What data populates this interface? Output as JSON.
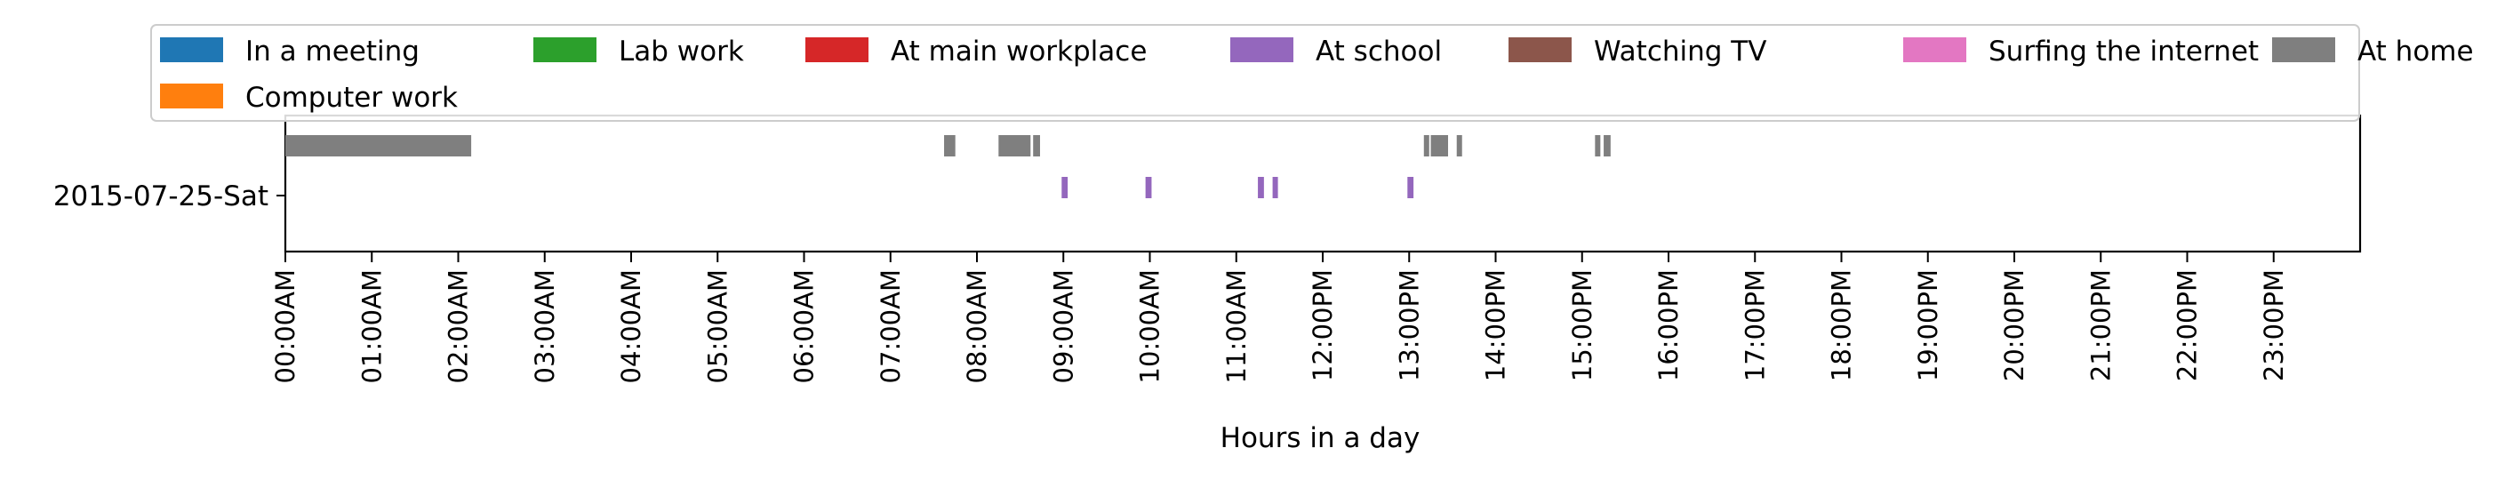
{
  "chart_data": {
    "type": "timeline",
    "title": "",
    "xlabel": "Hours in a day",
    "ylabel": "",
    "xlim": [
      0,
      24
    ],
    "x_ticks": [
      {
        "value": 0,
        "label": "00:00AM"
      },
      {
        "value": 1,
        "label": "01:00AM"
      },
      {
        "value": 2,
        "label": "02:00AM"
      },
      {
        "value": 3,
        "label": "03:00AM"
      },
      {
        "value": 4,
        "label": "04:00AM"
      },
      {
        "value": 5,
        "label": "05:00AM"
      },
      {
        "value": 6,
        "label": "06:00AM"
      },
      {
        "value": 7,
        "label": "07:00AM"
      },
      {
        "value": 8,
        "label": "08:00AM"
      },
      {
        "value": 9,
        "label": "09:00AM"
      },
      {
        "value": 10,
        "label": "10:00AM"
      },
      {
        "value": 11,
        "label": "11:00AM"
      },
      {
        "value": 12,
        "label": "12:00PM"
      },
      {
        "value": 13,
        "label": "13:00PM"
      },
      {
        "value": 14,
        "label": "14:00PM"
      },
      {
        "value": 15,
        "label": "15:00PM"
      },
      {
        "value": 16,
        "label": "16:00PM"
      },
      {
        "value": 17,
        "label": "17:00PM"
      },
      {
        "value": 18,
        "label": "18:00PM"
      },
      {
        "value": 19,
        "label": "19:00PM"
      },
      {
        "value": 20,
        "label": "20:00PM"
      },
      {
        "value": 21,
        "label": "21:00PM"
      },
      {
        "value": 22,
        "label": "22:00PM"
      },
      {
        "value": 23,
        "label": "23:00PM"
      }
    ],
    "rows": [
      "2015-07-25-Sat"
    ],
    "legend_position": "top",
    "legend": [
      {
        "name": "In a meeting",
        "color": "#1f77b4"
      },
      {
        "name": "Lab work",
        "color": "#2ca02c"
      },
      {
        "name": "At main workplace",
        "color": "#d62728"
      },
      {
        "name": "At school",
        "color": "#9467bd"
      },
      {
        "name": "Watching TV",
        "color": "#8c564b"
      },
      {
        "name": "Surfing the internet",
        "color": "#e377c2"
      },
      {
        "name": "At home",
        "color": "#7f7f7f"
      },
      {
        "name": "Computer work",
        "color": "#ff7f0e"
      }
    ],
    "series": [
      {
        "name": "At home",
        "color": "#7f7f7f",
        "row": "2015-07-25-Sat",
        "lane": "upper",
        "intervals": [
          [
            0.0,
            2.15
          ],
          [
            7.62,
            7.75
          ],
          [
            8.25,
            8.62
          ],
          [
            8.65,
            8.73
          ],
          [
            13.17,
            13.23
          ],
          [
            13.25,
            13.45
          ],
          [
            13.55,
            13.6
          ],
          [
            15.15,
            15.2
          ],
          [
            15.25,
            15.33
          ]
        ]
      },
      {
        "name": "At school",
        "color": "#9467bd",
        "row": "2015-07-25-Sat",
        "lane": "lower",
        "intervals": [
          [
            8.98,
            9.05
          ],
          [
            9.95,
            10.02
          ],
          [
            11.25,
            11.32
          ],
          [
            11.42,
            11.48
          ],
          [
            12.98,
            13.05
          ]
        ]
      }
    ]
  }
}
